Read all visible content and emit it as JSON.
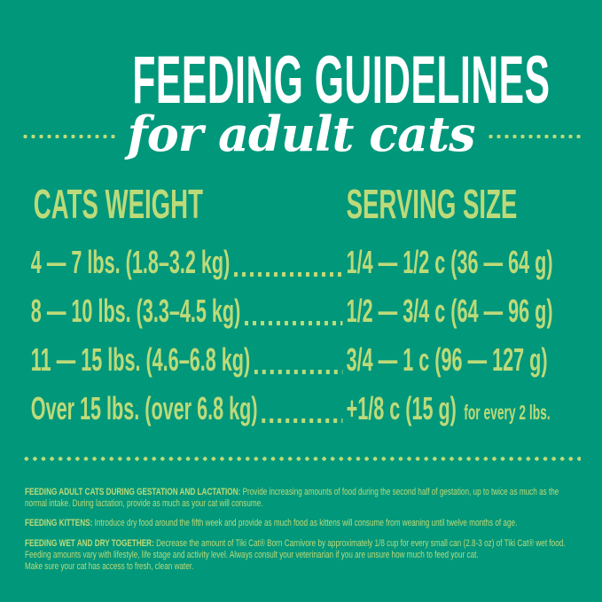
{
  "colors": {
    "background": "#00977b",
    "accent_yellow_green": "#bdda79",
    "title_white": "#ffffff"
  },
  "header": {
    "title": "FEEDING GUIDELINES",
    "subtitle": "for adult cats"
  },
  "table": {
    "columns": [
      "CATS WEIGHT",
      "SERVING SIZE"
    ],
    "rows": [
      {
        "weight": "4 — 7 lbs. (1.8–3.2 kg)",
        "serving": "1/4 — 1/2 c (36 — 64 g)",
        "note": ""
      },
      {
        "weight": "8 — 10 lbs. (3.3–4.5 kg)",
        "serving": "1/2 — 3/4 c (64 — 96 g)",
        "note": ""
      },
      {
        "weight": "11 — 15 lbs. (4.6–6.8 kg)",
        "serving": "3/4 — 1 c (96 — 127 g)",
        "note": ""
      },
      {
        "weight": "Over 15 lbs. (over 6.8 kg)",
        "serving": "+1/8 c (15 g)",
        "note": "for every 2 lbs."
      }
    ],
    "leader_style": "dotted"
  },
  "footnotes": [
    {
      "lead": "FEEDING ADULT CATS DURING GESTATION AND LACTATION:",
      "text": "Provide increasing amounts of food during the second half of gestation, up to twice as much as the normal intake.  During lactation, provide as much as your cat will consume."
    },
    {
      "lead": "FEEDING KITTENS:",
      "text": "Introduce dry food around the fifth week and provide as much food as kittens will consume from weaning until twelve months of age."
    },
    {
      "lead": "FEEDING WET AND DRY TOGETHER:",
      "text": "Decrease the amount of Tiki Cat® Born Carnivore by approximately 1/8 cup for every small can (2.8-3 oz) of Tiki Cat® wet food. Feeding amounts vary with lifestyle, life stage and activity level.  Always consult your veterinarian if you are unsure how much to feed your cat."
    },
    {
      "lead": "",
      "text": "Make sure your cat has access to fresh, clean water."
    }
  ]
}
